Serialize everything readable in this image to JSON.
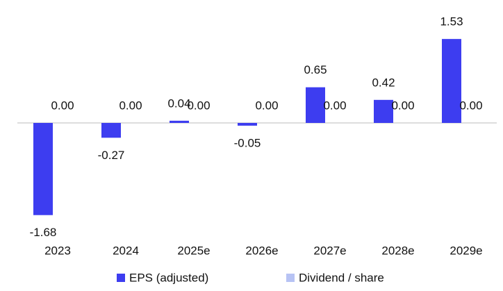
{
  "chart_data": {
    "type": "bar",
    "categories": [
      "2023",
      "2024",
      "2025e",
      "2026e",
      "2027e",
      "2028e",
      "2029e"
    ],
    "series": [
      {
        "name": "EPS (adjusted)",
        "color": "#3d3df0",
        "values": [
          -1.68,
          -0.27,
          0.04,
          -0.05,
          0.65,
          0.42,
          1.53
        ]
      },
      {
        "name": "Dividend / share",
        "color": "#b7c3f4",
        "values": [
          0,
          0,
          0,
          0,
          0,
          0,
          0
        ],
        "value_labels": [
          "0.00",
          "0.00",
          "0.00",
          "0.00",
          "0.00",
          "0.00",
          "0.00"
        ]
      }
    ],
    "ylim": [
      -2,
      2
    ],
    "legend": "bottom"
  }
}
